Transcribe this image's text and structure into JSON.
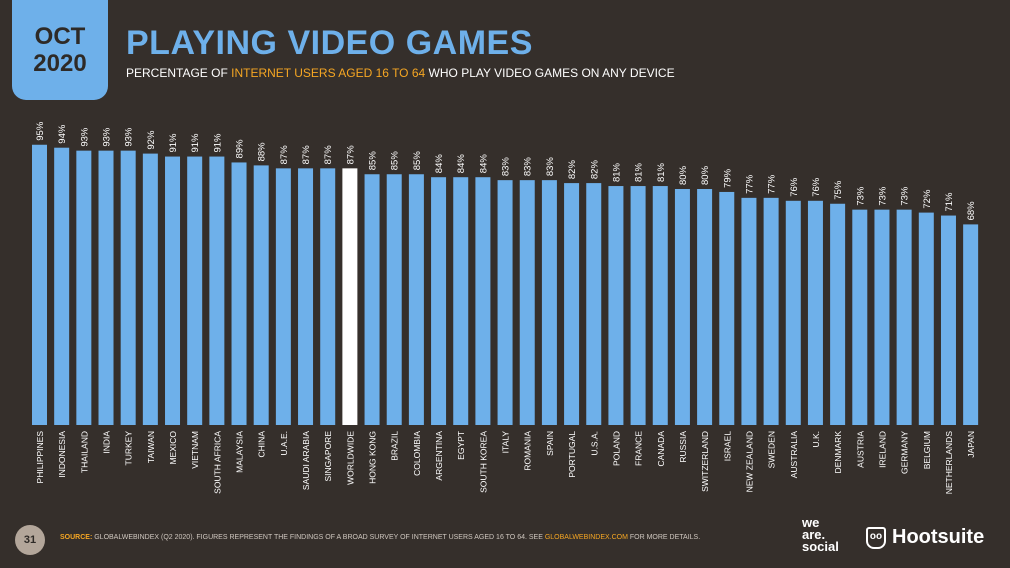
{
  "header": {
    "month": "OCT",
    "year": "2020",
    "title": "PLAYING VIDEO GAMES",
    "subtitle_pre": "PERCENTAGE OF ",
    "subtitle_highlight": "INTERNET USERS AGED 16 TO 64",
    "subtitle_post": " WHO PLAY VIDEO GAMES ON ANY DEVICE"
  },
  "footer": {
    "page_number": "31",
    "source_label": "SOURCE:",
    "source_text": " GLOBALWEBINDEX (Q2 2020). FIGURES REPRESENT THE FINDINGS OF A BROAD SURVEY OF INTERNET USERS AGED 16 TO 64. SEE ",
    "source_link": "GLOBALWEBINDEX.COM",
    "source_tail": " FOR MORE DETAILS.",
    "logo_was": "we are. social",
    "logo_hootsuite": "Hootsuite"
  },
  "colors": {
    "bar": "#6eb0ea",
    "highlight_bar": "#ffffff",
    "accent": "#f5a623",
    "background": "#352f2b"
  },
  "chart_data": {
    "type": "bar",
    "title": "PLAYING VIDEO GAMES",
    "xlabel": "",
    "ylabel": "Percentage of internet users aged 16 to 64",
    "ylim": [
      0,
      100
    ],
    "grid": false,
    "value_suffix": "%",
    "highlight": "WORLDWIDE",
    "categories": [
      "PHILIPPINES",
      "INDONESIA",
      "THAILAND",
      "INDIA",
      "TURKEY",
      "TAIWAN",
      "MEXICO",
      "VIETNAM",
      "SOUTH AFRICA",
      "MALAYSIA",
      "CHINA",
      "U.A.E.",
      "SAUDI ARABIA",
      "SINGAPORE",
      "WORLDWIDE",
      "HONG KONG",
      "BRAZIL",
      "COLOMBIA",
      "ARGENTINA",
      "EGYPT",
      "SOUTH KOREA",
      "ITALY",
      "ROMANIA",
      "SPAIN",
      "PORTUGAL",
      "U.S.A.",
      "POLAND",
      "FRANCE",
      "CANADA",
      "RUSSIA",
      "SWITZERLAND",
      "ISRAEL",
      "NEW ZEALAND",
      "SWEDEN",
      "AUSTRALIA",
      "U.K.",
      "DENMARK",
      "AUSTRIA",
      "IRELAND",
      "GERMANY",
      "BELGIUM",
      "NETHERLANDS",
      "JAPAN"
    ],
    "values": [
      95,
      94,
      93,
      93,
      93,
      92,
      91,
      91,
      91,
      89,
      88,
      87,
      87,
      87,
      87,
      85,
      85,
      85,
      84,
      84,
      84,
      83,
      83,
      83,
      82,
      82,
      81,
      81,
      81,
      80,
      80,
      79,
      77,
      77,
      76,
      76,
      75,
      73,
      73,
      73,
      72,
      71,
      68
    ]
  }
}
